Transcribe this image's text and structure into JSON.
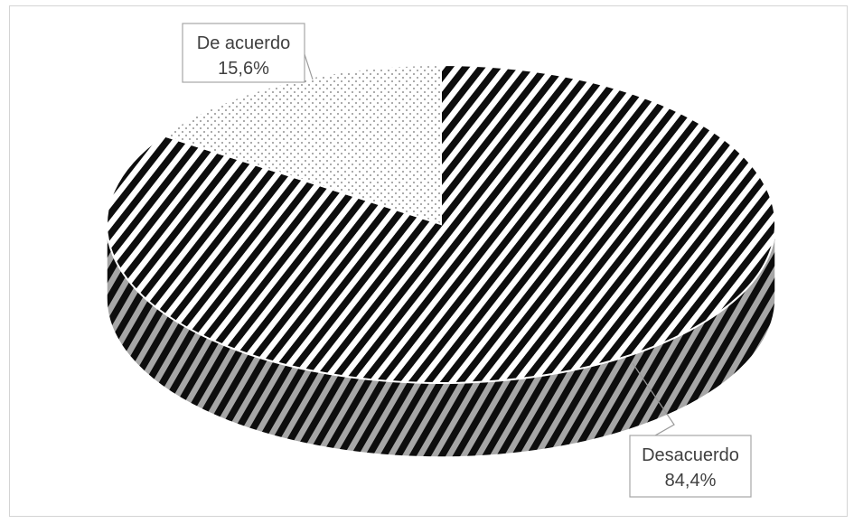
{
  "chart_data": {
    "type": "pie",
    "style": "3d",
    "title": "",
    "categories": [
      "Desacuerdo",
      "De acuerdo"
    ],
    "values": [
      84.4,
      15.6
    ],
    "value_labels": [
      "84,4%",
      "15,6%"
    ],
    "patterns": [
      "diagonal-stripes",
      "dots"
    ],
    "legend": "none"
  }
}
